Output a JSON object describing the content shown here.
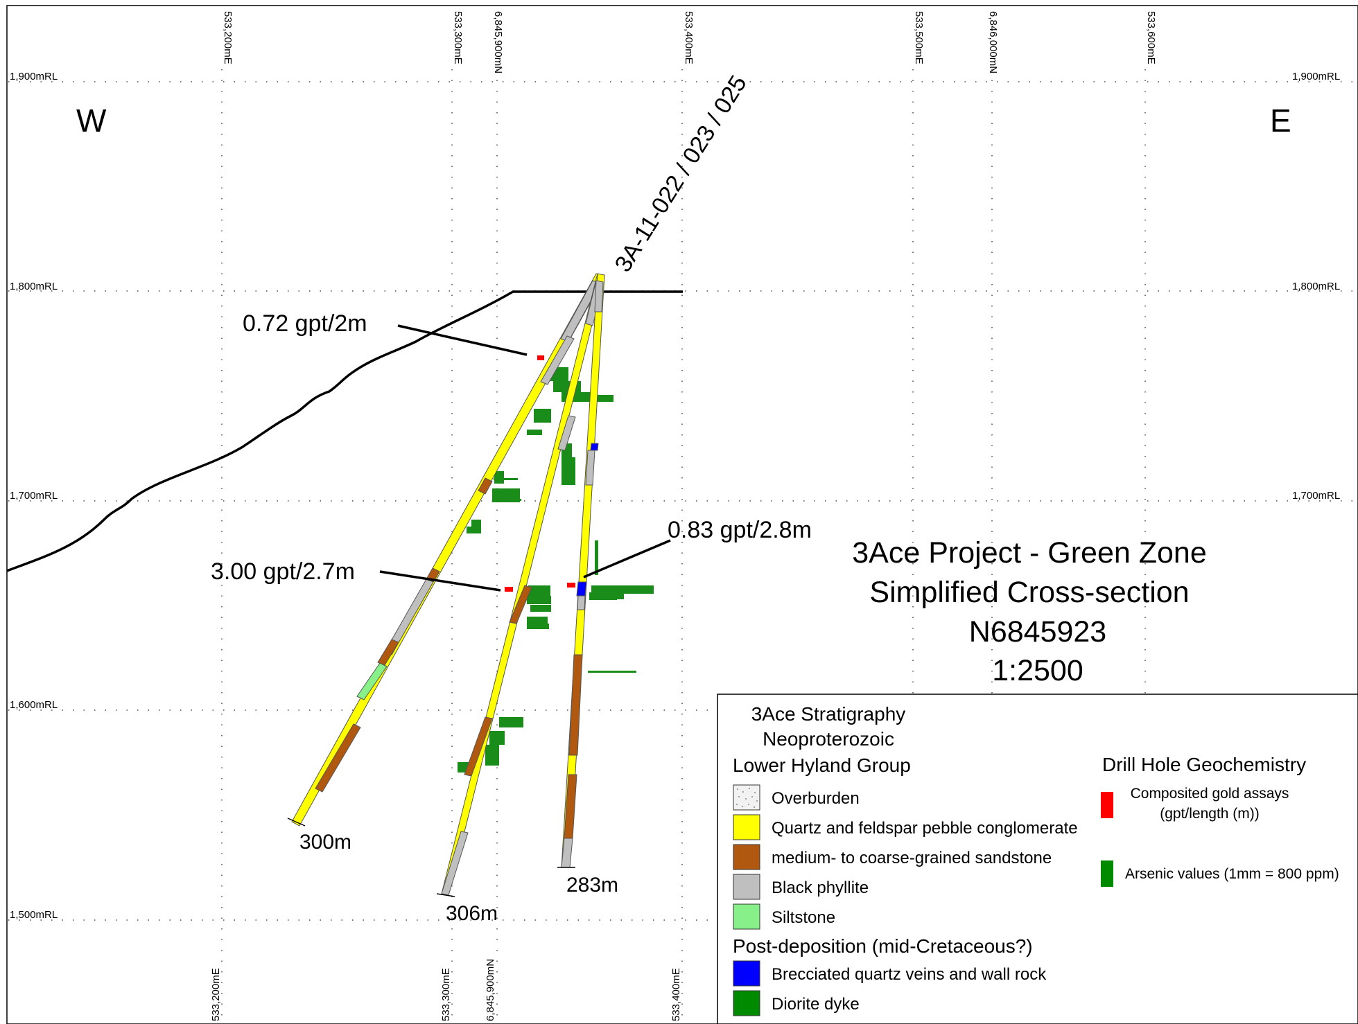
{
  "directions": {
    "west": "W",
    "east": "E"
  },
  "rl_labels": [
    "1,900mRL",
    "1,800mRL",
    "1,700mRL",
    "1,600mRL",
    "1,500mRL"
  ],
  "easting_labels": [
    "533,200mE",
    "533,300mE",
    "533,400mE",
    "533,500mE",
    "533,600mE"
  ],
  "northing_labels": [
    "6,845,900mN",
    "6,846,000mN"
  ],
  "hole_id": "3A-11-022 / 023 / 025",
  "intercepts": {
    "a": "0.72 gpt/2m",
    "b": "3.00 gpt/2.7m",
    "c": "0.83 gpt/2.8m"
  },
  "depths": {
    "h22": "300m",
    "h23": "306m",
    "h25": "283m"
  },
  "title": {
    "line1": "3Ace Project - Green Zone",
    "line2": "Simplified Cross-section",
    "line3": "N6845923",
    "line4": "1:2500"
  },
  "legend": {
    "header1": "3Ace Stratigraphy",
    "header2": "Neoproterozoic",
    "group1": "Lower Hyland Group",
    "items1": [
      {
        "label": "Overburden",
        "color": "#f2f2f2"
      },
      {
        "label": "Quartz and feldspar pebble conglomerate",
        "color": "#ffff00"
      },
      {
        "label": "medium- to coarse-grained sandstone",
        "color": "#b0580f"
      },
      {
        "label": "Black phyllite",
        "color": "#bfbfbf"
      },
      {
        "label": "Siltstone",
        "color": "#88f088"
      }
    ],
    "group2": "Post-deposition (mid-Cretaceous?)",
    "items2": [
      {
        "label": "Brecciated quartz veins and wall rock",
        "color": "#0000ff"
      },
      {
        "label": "Diorite dyke",
        "color": "#008a00"
      }
    ],
    "geo_header": "Drill Hole Geochemistry",
    "geo_gold_line1": "Composited gold assays",
    "geo_gold_line2": "(gpt/length (m))",
    "geo_gold_color": "#ff0000",
    "geo_as": "Arsenic values (1mm = 800 ppm)",
    "geo_as_color": "#008a00"
  }
}
